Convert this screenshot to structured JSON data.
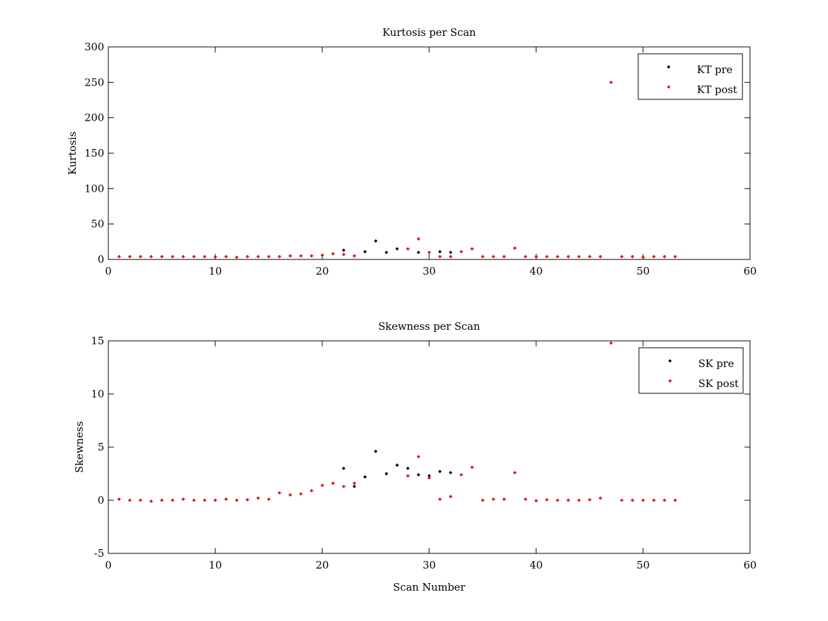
{
  "chart_data": [
    {
      "type": "scatter",
      "title": "Kurtosis per Scan",
      "xlabel": "",
      "ylabel": "Kurtosis",
      "xlim": [
        0,
        60
      ],
      "ylim": [
        0,
        300
      ],
      "xticks": [
        "0",
        "10",
        "20",
        "30",
        "40",
        "50",
        "60"
      ],
      "yticks": [
        "0",
        "50",
        "100",
        "150",
        "200",
        "250",
        "300"
      ],
      "grid": false,
      "legend_position": "top-right",
      "series": [
        {
          "name": "KT pre",
          "color": "#000000",
          "points": [
            [
              22,
              13
            ],
            [
              24,
              11
            ],
            [
              25,
              26
            ],
            [
              26,
              10
            ],
            [
              27,
              15
            ],
            [
              29,
              10
            ],
            [
              31,
              11
            ],
            [
              32,
              10
            ]
          ]
        },
        {
          "name": "KT post",
          "color": "#ff0000",
          "points": [
            [
              1,
              4
            ],
            [
              2,
              4
            ],
            [
              3,
              4
            ],
            [
              4,
              4
            ],
            [
              5,
              4
            ],
            [
              6,
              4
            ],
            [
              7,
              4
            ],
            [
              8,
              4
            ],
            [
              9,
              4
            ],
            [
              10,
              3.5
            ],
            [
              11,
              4
            ],
            [
              12,
              3
            ],
            [
              13,
              4
            ],
            [
              14,
              4
            ],
            [
              15,
              4
            ],
            [
              16,
              4
            ],
            [
              17,
              5
            ],
            [
              18,
              5
            ],
            [
              19,
              5
            ],
            [
              20,
              6
            ],
            [
              21,
              8
            ],
            [
              22,
              7
            ],
            [
              23,
              5
            ],
            [
              28,
              15
            ],
            [
              29,
              29
            ],
            [
              30,
              10
            ],
            [
              31,
              4
            ],
            [
              32,
              4
            ],
            [
              33,
              11
            ],
            [
              34,
              15
            ],
            [
              35,
              4
            ],
            [
              36,
              4
            ],
            [
              37,
              4
            ],
            [
              38,
              16
            ],
            [
              39,
              4
            ],
            [
              40,
              4
            ],
            [
              41,
              4
            ],
            [
              42,
              4
            ],
            [
              43,
              4
            ],
            [
              44,
              4
            ],
            [
              45,
              4
            ],
            [
              46,
              4
            ],
            [
              47,
              250
            ],
            [
              48,
              4
            ],
            [
              49,
              4
            ],
            [
              50,
              3
            ],
            [
              51,
              4
            ],
            [
              52,
              4
            ],
            [
              53,
              4
            ]
          ]
        }
      ]
    },
    {
      "type": "scatter",
      "title": "Skewness per Scan",
      "xlabel": "Scan Number",
      "ylabel": "Skewness",
      "xlim": [
        0,
        60
      ],
      "ylim": [
        -5,
        15
      ],
      "xticks": [
        "0",
        "10",
        "20",
        "30",
        "40",
        "50",
        "60"
      ],
      "yticks": [
        "-5",
        "0",
        "5",
        "10",
        "15"
      ],
      "grid": false,
      "legend_position": "top-right",
      "series": [
        {
          "name": "SK pre",
          "color": "#000000",
          "points": [
            [
              22,
              3.0
            ],
            [
              23,
              1.3
            ],
            [
              24,
              2.2
            ],
            [
              25,
              4.6
            ],
            [
              26,
              2.5
            ],
            [
              27,
              3.3
            ],
            [
              28,
              3.0
            ],
            [
              29,
              2.4
            ],
            [
              30,
              2.3
            ],
            [
              31,
              2.7
            ],
            [
              32,
              2.6
            ]
          ]
        },
        {
          "name": "SK post",
          "color": "#ff0000",
          "points": [
            [
              1,
              0.1
            ],
            [
              2,
              0.0
            ],
            [
              3,
              0.0
            ],
            [
              4,
              -0.1
            ],
            [
              5,
              0.0
            ],
            [
              6,
              0.0
            ],
            [
              7,
              0.1
            ],
            [
              8,
              0.0
            ],
            [
              9,
              0.0
            ],
            [
              10,
              0.0
            ],
            [
              11,
              0.1
            ],
            [
              12,
              0.0
            ],
            [
              13,
              0.05
            ],
            [
              14,
              0.2
            ],
            [
              15,
              0.1
            ],
            [
              16,
              0.7
            ],
            [
              17,
              0.5
            ],
            [
              18,
              0.6
            ],
            [
              19,
              0.9
            ],
            [
              20,
              1.4
            ],
            [
              21,
              1.6
            ],
            [
              22,
              1.3
            ],
            [
              23,
              1.6
            ],
            [
              28,
              2.3
            ],
            [
              29,
              4.1
            ],
            [
              30,
              2.1
            ],
            [
              31,
              0.1
            ],
            [
              32,
              0.35
            ],
            [
              33,
              2.4
            ],
            [
              34,
              3.1
            ],
            [
              35,
              0.0
            ],
            [
              36,
              0.1
            ],
            [
              37,
              0.1
            ],
            [
              38,
              2.6
            ],
            [
              39,
              0.1
            ],
            [
              40,
              -0.05
            ],
            [
              41,
              0.05
            ],
            [
              42,
              0.0
            ],
            [
              43,
              0.0
            ],
            [
              44,
              0.0
            ],
            [
              45,
              0.05
            ],
            [
              46,
              0.2
            ],
            [
              47,
              14.8
            ],
            [
              48,
              0.0
            ],
            [
              49,
              0.0
            ],
            [
              50,
              0.0
            ],
            [
              51,
              0.0
            ],
            [
              52,
              0.0
            ],
            [
              53,
              0.0
            ]
          ]
        }
      ]
    }
  ]
}
